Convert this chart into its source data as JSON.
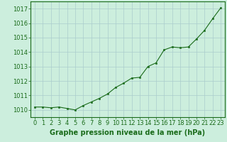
{
  "x": [
    0,
    1,
    2,
    3,
    4,
    5,
    6,
    7,
    8,
    9,
    10,
    11,
    12,
    13,
    14,
    15,
    16,
    17,
    18,
    19,
    20,
    21,
    22,
    23
  ],
  "y": [
    1010.2,
    1010.2,
    1010.15,
    1010.2,
    1010.1,
    1010.0,
    1010.3,
    1010.55,
    1010.8,
    1011.1,
    1011.55,
    1011.85,
    1012.2,
    1012.25,
    1013.0,
    1013.25,
    1014.15,
    1014.35,
    1014.3,
    1014.35,
    1014.9,
    1015.5,
    1016.3,
    1017.05
  ],
  "line_color": "#1a6b1a",
  "marker_color": "#1a6b1a",
  "bg_color": "#cceedd",
  "grid_color": "#aacccc",
  "axis_color": "#1a6b1a",
  "xlabel": "Graphe pression niveau de la mer (hPa)",
  "ylim": [
    1009.5,
    1017.5
  ],
  "xlim": [
    -0.5,
    23.5
  ],
  "yticks": [
    1010,
    1011,
    1012,
    1013,
    1014,
    1015,
    1016,
    1017
  ],
  "xticks": [
    0,
    1,
    2,
    3,
    4,
    5,
    6,
    7,
    8,
    9,
    10,
    11,
    12,
    13,
    14,
    15,
    16,
    17,
    18,
    19,
    20,
    21,
    22,
    23
  ],
  "tick_label_color": "#1a6b1a",
  "label_fontsize": 7,
  "tick_fontsize": 6
}
